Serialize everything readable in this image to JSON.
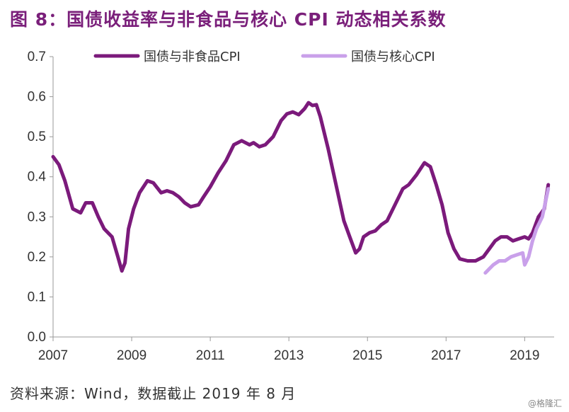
{
  "header": {
    "title": "图 8：国债收益率与非食品与核心 CPI 动态相关系数"
  },
  "source": "资料来源：Wind，数据截止 2019 年 8 月",
  "watermark": "@格隆汇",
  "chart_data": {
    "type": "line",
    "title": "",
    "xlabel": "",
    "ylabel": "",
    "xlim": [
      2007.0,
      2019.75
    ],
    "ylim": [
      0.0,
      0.7
    ],
    "x_ticks": [
      "2007",
      "2009",
      "2011",
      "2013",
      "2015",
      "2017",
      "2019"
    ],
    "y_ticks": [
      "0.0",
      "0.1",
      "0.2",
      "0.3",
      "0.4",
      "0.5",
      "0.6",
      "0.7"
    ],
    "legend_position": "top",
    "series": [
      {
        "name": "国债与非食品CPI",
        "color": "#7b1a7b",
        "x": [
          2007.0,
          2007.15,
          2007.3,
          2007.5,
          2007.7,
          2007.83,
          2008.0,
          2008.15,
          2008.3,
          2008.5,
          2008.65,
          2008.75,
          2008.83,
          2008.92,
          2009.05,
          2009.2,
          2009.4,
          2009.55,
          2009.75,
          2009.9,
          2010.05,
          2010.2,
          2010.35,
          2010.5,
          2010.7,
          2010.83,
          2011.0,
          2011.2,
          2011.4,
          2011.6,
          2011.8,
          2012.0,
          2012.1,
          2012.25,
          2012.4,
          2012.6,
          2012.8,
          2012.95,
          2013.1,
          2013.25,
          2013.4,
          2013.5,
          2013.6,
          2013.7,
          2013.8,
          2014.0,
          2014.2,
          2014.4,
          2014.55,
          2014.7,
          2014.8,
          2014.9,
          2015.05,
          2015.2,
          2015.35,
          2015.5,
          2015.7,
          2015.9,
          2016.05,
          2016.25,
          2016.45,
          2016.6,
          2016.75,
          2016.9,
          2017.05,
          2017.2,
          2017.35,
          2017.55,
          2017.75,
          2017.95,
          2018.1,
          2018.25,
          2018.4,
          2018.55,
          2018.7,
          2018.85,
          2019.0,
          2019.1,
          2019.2,
          2019.35,
          2019.5,
          2019.6
        ],
        "y": [
          0.45,
          0.43,
          0.39,
          0.32,
          0.31,
          0.335,
          0.335,
          0.3,
          0.27,
          0.25,
          0.2,
          0.165,
          0.185,
          0.27,
          0.32,
          0.36,
          0.39,
          0.385,
          0.36,
          0.365,
          0.36,
          0.35,
          0.335,
          0.325,
          0.33,
          0.35,
          0.375,
          0.41,
          0.44,
          0.48,
          0.49,
          0.48,
          0.485,
          0.475,
          0.48,
          0.5,
          0.54,
          0.557,
          0.562,
          0.555,
          0.57,
          0.585,
          0.578,
          0.58,
          0.55,
          0.47,
          0.38,
          0.29,
          0.25,
          0.21,
          0.22,
          0.25,
          0.26,
          0.265,
          0.28,
          0.29,
          0.33,
          0.37,
          0.38,
          0.405,
          0.435,
          0.425,
          0.38,
          0.33,
          0.26,
          0.22,
          0.195,
          0.19,
          0.19,
          0.2,
          0.22,
          0.24,
          0.25,
          0.25,
          0.24,
          0.245,
          0.25,
          0.245,
          0.26,
          0.3,
          0.32,
          0.38
        ]
      },
      {
        "name": "国债与核心CPI",
        "color": "#c9a0ea",
        "x": [
          2018.0,
          2018.1,
          2018.2,
          2018.35,
          2018.5,
          2018.65,
          2018.8,
          2018.95,
          2019.0,
          2019.1,
          2019.2,
          2019.3,
          2019.45,
          2019.6
        ],
        "y": [
          0.16,
          0.17,
          0.18,
          0.19,
          0.19,
          0.2,
          0.205,
          0.21,
          0.18,
          0.2,
          0.24,
          0.27,
          0.3,
          0.37
        ]
      }
    ]
  }
}
